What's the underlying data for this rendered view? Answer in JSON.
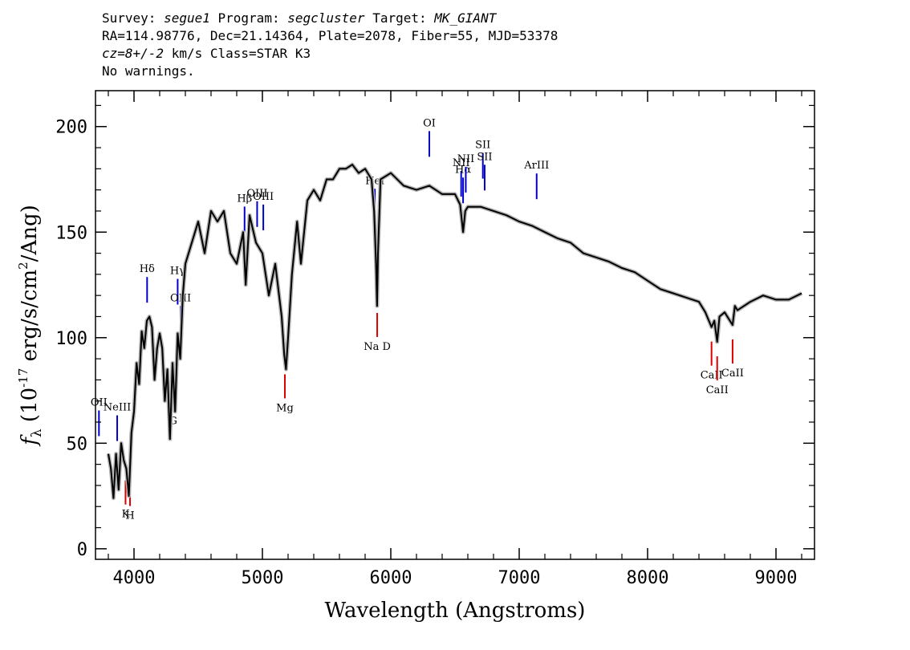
{
  "header": {
    "survey_label": "Survey:",
    "survey": "segue1",
    "program_label": "Program:",
    "program": "segcluster",
    "target_label": "Target:",
    "target": "MK_GIANT",
    "line2": "RA=114.98776, Dec=21.14364, Plate=2078, Fiber=55, MJD=53378",
    "cz_label": "cz=8+/-2",
    "cz_rest": " km/s Class=STAR K3",
    "line4": "No warnings."
  },
  "chart_data": {
    "type": "line",
    "xlabel": "Wavelength (Angstroms)",
    "ylabel": "f_λ (10^-17 erg/s/cm^2/Ang)",
    "xlim": [
      3700,
      9300
    ],
    "ylim": [
      -5,
      217
    ],
    "x_ticks": [
      4000,
      5000,
      6000,
      7000,
      8000,
      9000
    ],
    "y_ticks": [
      0,
      50,
      100,
      150,
      200
    ],
    "grid": false,
    "colors": {
      "spectrum": "#000000",
      "error": "#b4b4b4",
      "emission": "#0000cc",
      "absorption": "#dd0000"
    },
    "series": [
      {
        "x": [
          3800,
          3820,
          3840,
          3860,
          3880,
          3900,
          3920,
          3940,
          3960,
          3980,
          4000,
          4020,
          4040,
          4060,
          4080,
          4100,
          4120,
          4140,
          4160,
          4180,
          4200,
          4220,
          4240,
          4260,
          4280,
          4300,
          4320,
          4340,
          4360,
          4380,
          4400,
          4450,
          4500,
          4550,
          4600,
          4650,
          4700,
          4750,
          4800,
          4850,
          4870,
          4900,
          4950,
          5000,
          5050,
          5100,
          5150,
          5170,
          5184,
          5200,
          5230,
          5270,
          5300,
          5350,
          5400,
          5450,
          5500,
          5550,
          5600,
          5650,
          5700,
          5750,
          5800,
          5850,
          5870,
          5885,
          5893,
          5900,
          5920,
          6000,
          6100,
          6200,
          6300,
          6400,
          6500,
          6540,
          6563,
          6580,
          6600,
          6700,
          6800,
          6900,
          7000,
          7100,
          7200,
          7300,
          7400,
          7500,
          7600,
          7700,
          7800,
          7900,
          8000,
          8100,
          8200,
          8300,
          8400,
          8450,
          8498,
          8520,
          8542,
          8560,
          8600,
          8662,
          8680,
          8700,
          8800,
          8900,
          9000,
          9100,
          9200
        ],
        "y": [
          45,
          38,
          24,
          45,
          28,
          50,
          42,
          38,
          25,
          55,
          65,
          88,
          78,
          103,
          95,
          108,
          110,
          105,
          80,
          95,
          102,
          95,
          70,
          85,
          52,
          88,
          65,
          102,
          90,
          120,
          135,
          145,
          155,
          140,
          160,
          155,
          160,
          140,
          135,
          150,
          125,
          158,
          145,
          140,
          120,
          135,
          110,
          92,
          85,
          100,
          130,
          155,
          135,
          165,
          170,
          165,
          175,
          175,
          180,
          180,
          182,
          178,
          180,
          175,
          160,
          135,
          115,
          140,
          175,
          178,
          172,
          170,
          172,
          168,
          168,
          163,
          150,
          160,
          162,
          162,
          160,
          158,
          155,
          153,
          150,
          147,
          145,
          140,
          138,
          136,
          133,
          131,
          127,
          123,
          121,
          119,
          117,
          112,
          105,
          108,
          98,
          110,
          112,
          106,
          115,
          113,
          117,
          120,
          118,
          118,
          121
        ]
      }
    ],
    "emission_lines": [
      {
        "label": "OII",
        "wavelength": 3727
      },
      {
        "label": "NeIII",
        "wavelength": 3869
      },
      {
        "label": "Hδ",
        "wavelength": 4102
      },
      {
        "label": "Hγ",
        "wavelength": 4340
      },
      {
        "label": "OIII",
        "wavelength": 4363
      },
      {
        "label": "Hβ",
        "wavelength": 4861
      },
      {
        "label": "OIII",
        "wavelength": 4959
      },
      {
        "label": "OIII",
        "wavelength": 5007
      },
      {
        "label": "HeI",
        "wavelength": 5876
      },
      {
        "label": "OI",
        "wavelength": 6300
      },
      {
        "label": "NII",
        "wavelength": 6548
      },
      {
        "label": "Hα",
        "wavelength": 6563
      },
      {
        "label": "NII",
        "wavelength": 6584
      },
      {
        "label": "SII",
        "wavelength": 6717
      },
      {
        "label": "SII",
        "wavelength": 6731
      },
      {
        "label": "ArIII",
        "wavelength": 7136
      }
    ],
    "absorption_lines": [
      {
        "label": "K",
        "wavelength": 3934
      },
      {
        "label": "H",
        "wavelength": 3969
      },
      {
        "label": "G",
        "wavelength": 4304
      },
      {
        "label": "Mg",
        "wavelength": 5175
      },
      {
        "label": "Na D",
        "wavelength": 5894
      },
      {
        "label": "CaII",
        "wavelength": 8498
      },
      {
        "label": "CaII",
        "wavelength": 8542
      },
      {
        "label": "CaII",
        "wavelength": 8662
      }
    ]
  }
}
